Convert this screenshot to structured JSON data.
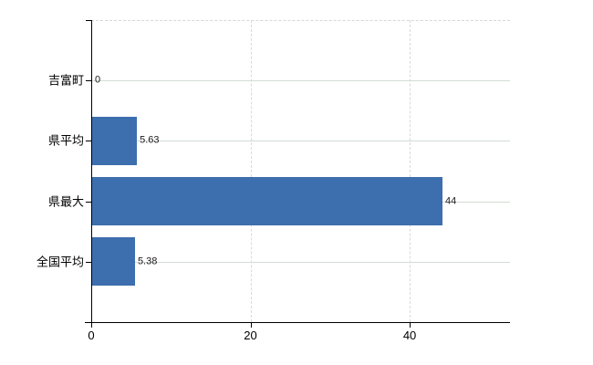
{
  "chart_data": {
    "type": "bar",
    "orientation": "horizontal",
    "title": "",
    "xlabel": "",
    "ylabel": "",
    "categories": [
      "吉富町",
      "県平均",
      "県最大",
      "全国平均"
    ],
    "values": [
      0,
      5.63,
      44,
      5.38
    ],
    "value_labels": [
      "0",
      "5.63",
      "44",
      "5.38"
    ],
    "xlim": [
      0,
      52.6
    ],
    "xticks": [
      0,
      20,
      40
    ],
    "xtick_labels": [
      "0",
      "20",
      "40"
    ],
    "grid": true,
    "legend": false,
    "bar_color": "#3d6ead",
    "horizontal_gridline_color": "#d4dcd4",
    "vertical_gridline_color": "#d9d9d9",
    "axis_color": "#000000",
    "background_color": "#ffffff"
  }
}
